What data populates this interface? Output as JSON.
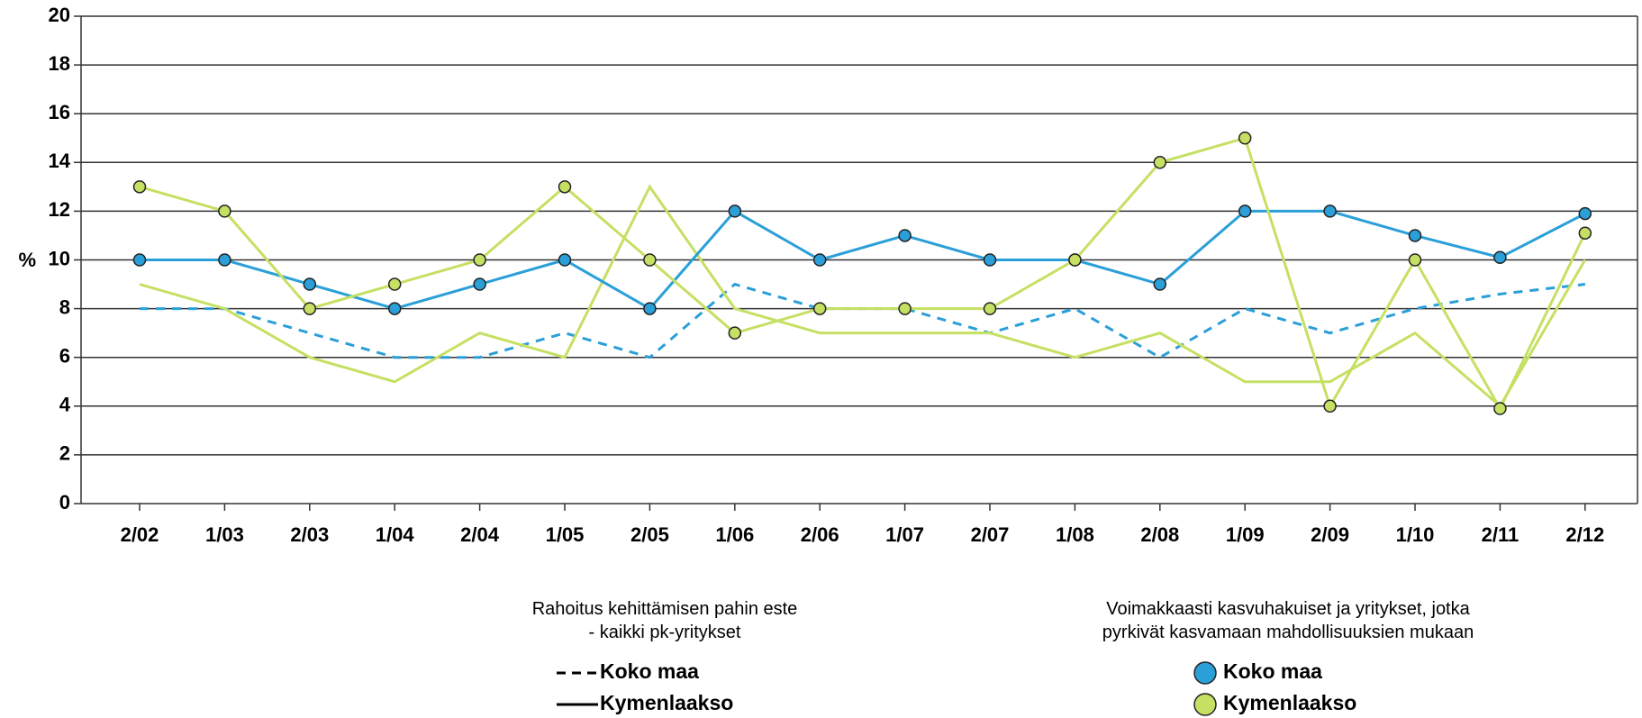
{
  "chart_data": {
    "type": "line",
    "ylabel": "%",
    "categories": [
      "2/02",
      "1/03",
      "2/03",
      "1/04",
      "2/04",
      "1/05",
      "2/05",
      "1/06",
      "2/06",
      "1/07",
      "2/07",
      "1/08",
      "2/08",
      "1/09",
      "2/09",
      "1/10",
      "2/11",
      "2/12"
    ],
    "ylim": [
      0,
      20
    ],
    "yticks": [
      0,
      2,
      4,
      6,
      8,
      10,
      12,
      14,
      16,
      18,
      20
    ],
    "grid": true,
    "legend_titles": [
      "Rahoitus kehittämisen pahin este - kaikki pk-yritykset",
      "Voimakkaasti kasvuhakuiset ja yritykset, jotka pyrkivät kasvamaan mahdollisuuksien mukaan"
    ],
    "series": [
      {
        "name": "Koko maa",
        "color": "#2a9fd8",
        "dashed": true,
        "markers": false,
        "values": [
          8,
          8,
          7,
          6,
          6,
          7,
          6,
          9,
          8,
          8,
          7,
          8,
          6,
          8,
          7,
          8,
          8.6,
          9
        ]
      },
      {
        "name": "Kymenlaakso",
        "color": "#c5e063",
        "dashed": false,
        "markers": false,
        "values": [
          9,
          8,
          6,
          5,
          7,
          6,
          13,
          8,
          7,
          7,
          7,
          6,
          7,
          5,
          5,
          7,
          4,
          10
        ]
      },
      {
        "name": "Koko maa",
        "color": "#2a9fd8",
        "dashed": false,
        "markers": true,
        "values": [
          10,
          10,
          9,
          8,
          9,
          10,
          8,
          12,
          10,
          11,
          10,
          10,
          9,
          12,
          12,
          11,
          10.1,
          11.9
        ]
      },
      {
        "name": "Kymenlaakso",
        "color": "#c5e063",
        "dashed": false,
        "markers": true,
        "values": [
          13,
          12,
          8,
          9,
          10,
          13,
          10,
          7,
          8,
          8,
          8,
          10,
          14,
          15,
          4,
          10,
          3.9,
          11.1
        ]
      }
    ]
  }
}
